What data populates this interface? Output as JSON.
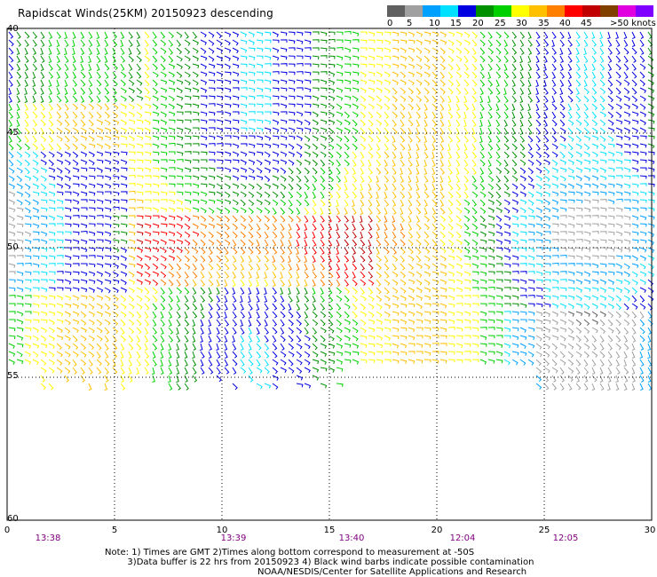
{
  "header": {
    "title": "Rapidscat Winds(25KM) 20150923 descending"
  },
  "legend": {
    "colors": [
      "#606060",
      "#a0a0a0",
      "#00a0ff",
      "#00e0ff",
      "#0000e0",
      "#009000",
      "#00d000",
      "#ffff00",
      "#ffc000",
      "#ff8000",
      "#ff0000",
      "#c00000",
      "#804000",
      "#e000e0",
      "#8000ff"
    ],
    "labels": [
      "0",
      "5",
      "10",
      "15",
      "20",
      "25",
      "30",
      "35",
      "40",
      "45",
      ">50 knots"
    ]
  },
  "map": {
    "lat_labels": [
      "40",
      "45",
      "50",
      "55",
      "60"
    ],
    "lon_labels": [
      "0",
      "5",
      "10",
      "15",
      "20",
      "25",
      "30"
    ],
    "time_labels": [
      "13:38",
      "13:39",
      "13:40",
      "12:04",
      "12:05"
    ]
  },
  "footer": {
    "note_line1": "Note: 1) Times are GMT 2)Times along bottom correspond to measurement at -50S",
    "note_line2": "        3)Data buffer is 22 hrs from 20150923 4) Black wind barbs indicate possible contamination",
    "credit": "NOAA/NESDIS/Center for Satellite Applications and Research"
  }
}
